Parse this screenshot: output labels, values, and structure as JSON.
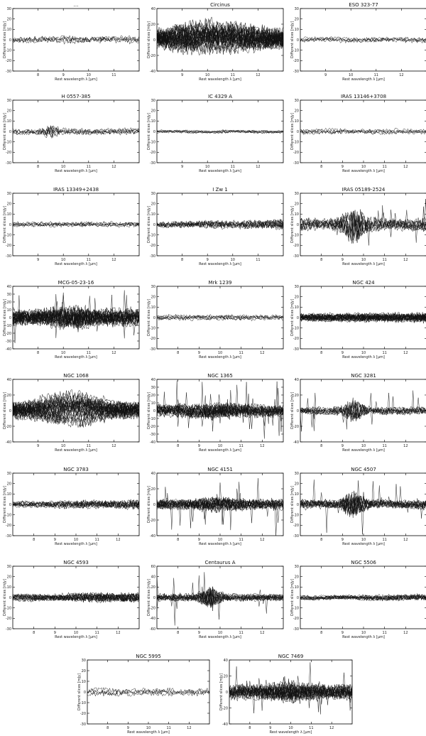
{
  "figure": {
    "chart_data": [
      {
        "type": "line",
        "title": "...",
        "xlabel": "Rest wavelength λ [μm]",
        "ylabel": "Different slices [mJy]",
        "xlim": [
          7,
          12.3
        ],
        "ylim": [
          -30,
          30
        ],
        "xticks": [
          "8",
          "9",
          "10",
          "11"
        ],
        "yticks": [
          "30",
          "20",
          "10",
          "0",
          "-10",
          "-20",
          "-30"
        ],
        "n_series": 5,
        "amplitude": 4,
        "noise_profile": "flat"
      },
      {
        "type": "line",
        "title": "Circinus",
        "xlabel": "Rest wavelength λ [μm]",
        "ylabel": "Different slices [mJy]",
        "xlim": [
          7.5,
          13
        ],
        "ylim": [
          -40,
          40
        ],
        "xticks": [
          "9",
          "10",
          "11",
          "12"
        ],
        "yticks": [
          "40",
          "20",
          "0",
          "-20",
          "-40"
        ],
        "n_series": 28,
        "amplitude": 16,
        "noise_profile": "silicate-wave"
      },
      {
        "type": "line",
        "title": "ESO 323-77",
        "xlabel": "Rest wavelength λ [μm]",
        "ylabel": "Different slices [mJy]",
        "xlim": [
          7.5,
          13
        ],
        "ylim": [
          -30,
          30
        ],
        "xticks": [
          "9",
          "10",
          "11",
          "12"
        ],
        "yticks": [
          "30",
          "20",
          "10",
          "0",
          "-10",
          "-20",
          "-30"
        ],
        "n_series": 5,
        "amplitude": 3,
        "noise_profile": "flat"
      },
      {
        "type": "line",
        "title": "H 0557-385",
        "xlabel": "Rest wavelength λ [μm]",
        "ylabel": "Different slices [mJy]",
        "xlim": [
          7.7,
          12.7
        ],
        "ylim": [
          -30,
          30
        ],
        "xticks": [
          "8",
          "10",
          "11",
          "12"
        ],
        "yticks": [
          "30",
          "20",
          "10",
          "0",
          "-10",
          "-20",
          "-30"
        ],
        "n_series": 6,
        "amplitude": 3.5,
        "noise_profile": "spike-left"
      },
      {
        "type": "line",
        "title": "IC 4329 A",
        "xlabel": "Rest wavelength λ [μm]",
        "ylabel": "Different slices [mJy]",
        "xlim": [
          8,
          12.5
        ],
        "ylim": [
          -30,
          30
        ],
        "xticks": [
          "9",
          "10",
          "11",
          "12"
        ],
        "yticks": [
          "30",
          "20",
          "10",
          "0",
          "-10",
          "-20",
          "-30"
        ],
        "n_series": 6,
        "amplitude": 2,
        "noise_profile": "flat"
      },
      {
        "type": "line",
        "title": "IRAS 13146+3708",
        "xlabel": "Rest wavelength λ [μm]",
        "ylabel": "Different slices [mJy]",
        "xlim": [
          7.3,
          12.4
        ],
        "ylim": [
          -30,
          30
        ],
        "xticks": [
          "8",
          "9",
          "10",
          "11",
          "12"
        ],
        "yticks": [
          "30",
          "20",
          "10",
          "0",
          "-10",
          "-20",
          "-30"
        ],
        "n_series": 5,
        "amplitude": 3,
        "noise_profile": "flat"
      },
      {
        "type": "line",
        "title": "IRAS 13349+2438",
        "xlabel": "Rest wavelength λ [μm]",
        "ylabel": "Different slices [mJy]",
        "xlim": [
          8,
          12.5
        ],
        "ylim": [
          -30,
          30
        ],
        "xticks": [
          "9",
          "10",
          "11",
          "12"
        ],
        "yticks": [
          "30",
          "20",
          "10",
          "0",
          "-10",
          "-20",
          "-30"
        ],
        "n_series": 6,
        "amplitude": 3,
        "noise_profile": "flat"
      },
      {
        "type": "line",
        "title": "I Zw 1",
        "xlabel": "Rest wavelength λ [μm]",
        "ylabel": "Different slices [mJy]",
        "xlim": [
          7.3,
          12
        ],
        "ylim": [
          -30,
          30
        ],
        "xticks": [
          "8",
          "9",
          "10",
          "11"
        ],
        "yticks": [
          "30",
          "20",
          "10",
          "0",
          "-10",
          "-20",
          "-30"
        ],
        "n_series": 10,
        "amplitude": 4.5,
        "noise_profile": "rising"
      },
      {
        "type": "line",
        "title": "IRAS 05189-2524",
        "xlabel": "Rest wavelength λ [μm]",
        "ylabel": "Different slices [mJy]",
        "xlim": [
          7.6,
          12.8
        ],
        "ylim": [
          -30,
          30
        ],
        "xticks": [
          "8",
          "9",
          "10",
          "11",
          "12"
        ],
        "yticks": [
          "30",
          "20",
          "10",
          "0",
          "-10",
          "-20",
          "-30"
        ],
        "n_series": 10,
        "amplitude": 7,
        "noise_profile": "spike-center"
      },
      {
        "type": "line",
        "title": "MCG-05-23-16",
        "xlabel": "Rest wavelength λ [μm]",
        "ylabel": "Different slices [mJy]",
        "xlim": [
          7.5,
          12.8
        ],
        "ylim": [
          -40,
          40
        ],
        "xticks": [
          "8",
          "10",
          "11",
          "12"
        ],
        "yticks": [
          "40",
          "30",
          "20",
          "10",
          "0",
          "-10",
          "-20",
          "-30",
          "-40"
        ],
        "n_series": 22,
        "amplitude": 12,
        "noise_profile": "noisy"
      },
      {
        "type": "line",
        "title": "Mrk 1239",
        "xlabel": "Rest wavelength λ [μm]",
        "ylabel": "Different slices [mJy]",
        "xlim": [
          7.6,
          12.5
        ],
        "ylim": [
          -30,
          30
        ],
        "xticks": [
          "8",
          "9",
          "10",
          "11",
          "12"
        ],
        "yticks": [
          "30",
          "20",
          "10",
          "0",
          "-10",
          "-20",
          "-30"
        ],
        "n_series": 6,
        "amplitude": 3,
        "noise_profile": "flat"
      },
      {
        "type": "line",
        "title": "NGC 424",
        "xlabel": "Rest wavelength λ [μm]",
        "ylabel": "Different slices [mJy]",
        "xlim": [
          7.6,
          12.8
        ],
        "ylim": [
          -30,
          30
        ],
        "xticks": [
          "8",
          "9",
          "10",
          "11",
          "12"
        ],
        "yticks": [
          "30",
          "20",
          "10",
          "0",
          "-10",
          "-20",
          "-30"
        ],
        "n_series": 24,
        "amplitude": 5,
        "noise_profile": "dense"
      },
      {
        "type": "line",
        "title": "NGC 1068",
        "xlabel": "Rest wavelength λ [μm]",
        "ylabel": "Different slices [mJy]",
        "xlim": [
          7.5,
          13
        ],
        "ylim": [
          -40,
          40
        ],
        "xticks": [
          "9",
          "10",
          "11",
          "12"
        ],
        "yticks": [
          "40",
          "20",
          "0",
          "-20",
          "-40"
        ],
        "n_series": 28,
        "amplitude": 12,
        "noise_profile": "silicate-wave"
      },
      {
        "type": "line",
        "title": "NGC 1365",
        "xlabel": "Rest wavelength λ [μm]",
        "ylabel": "Different slices [mJy]",
        "xlim": [
          7.6,
          12.6
        ],
        "ylim": [
          -40,
          40
        ],
        "xticks": [
          "8",
          "9",
          "10",
          "11",
          "12"
        ],
        "yticks": [
          "40",
          "30",
          "20",
          "10",
          "0",
          "-10",
          "-20",
          "-30",
          "-40"
        ],
        "n_series": 18,
        "amplitude": 9,
        "noise_profile": "noisy"
      },
      {
        "type": "line",
        "title": "NGC 3281",
        "xlabel": "Rest wavelength λ [μm]",
        "ylabel": "Different slices [mJy]",
        "xlim": [
          7.5,
          12.5
        ],
        "ylim": [
          -40,
          40
        ],
        "xticks": [
          "8",
          "9",
          "10",
          "11",
          "12"
        ],
        "yticks": [
          "40",
          "20",
          "0",
          "-20",
          "-40"
        ],
        "n_series": 10,
        "amplitude": 6,
        "noise_profile": "spike-center"
      },
      {
        "type": "line",
        "title": "NGC 3783",
        "xlabel": "Rest wavelength λ [μm]",
        "ylabel": "Different slices [mJy]",
        "xlim": [
          7.5,
          12.3
        ],
        "ylim": [
          -30,
          30
        ],
        "xticks": [
          "8",
          "9",
          "10",
          "11",
          "12"
        ],
        "yticks": [
          "30",
          "20",
          "10",
          "0",
          "-10",
          "-20",
          "-30"
        ],
        "n_series": 12,
        "amplitude": 4,
        "noise_profile": "rising"
      },
      {
        "type": "line",
        "title": "NGC 4151",
        "xlabel": "Rest wavelength λ [μm]",
        "ylabel": "Different slices [mJy]",
        "xlim": [
          7.8,
          12.9
        ],
        "ylim": [
          -40,
          40
        ],
        "xticks": [
          "8",
          "9",
          "10",
          "11",
          "12"
        ],
        "yticks": [
          "40",
          "20",
          "0",
          "-20",
          "-40"
        ],
        "n_series": 16,
        "amplitude": 8,
        "noise_profile": "noisy"
      },
      {
        "type": "line",
        "title": "NGC 4507",
        "xlabel": "Rest wavelength λ [μm]",
        "ylabel": "Different slices [mJy]",
        "xlim": [
          7.8,
          12.8
        ],
        "ylim": [
          -30,
          30
        ],
        "xticks": [
          "8",
          "9",
          "10",
          "11",
          "12"
        ],
        "yticks": [
          "30",
          "20",
          "10",
          "0",
          "-10",
          "-20",
          "-30"
        ],
        "n_series": 14,
        "amplitude": 5,
        "noise_profile": "spike-center"
      },
      {
        "type": "line",
        "title": "NGC 4593",
        "xlabel": "Rest wavelength λ [μm]",
        "ylabel": "Different slices [mJy]",
        "xlim": [
          7.8,
          12.4
        ],
        "ylim": [
          -30,
          30
        ],
        "xticks": [
          "8",
          "9",
          "10",
          "11",
          "12"
        ],
        "yticks": [
          "30",
          "20",
          "10",
          "0",
          "-10",
          "-20",
          "-30"
        ],
        "n_series": 16,
        "amplitude": 4.5,
        "noise_profile": "rising"
      },
      {
        "type": "line",
        "title": "Centaurus A",
        "xlabel": "Rest wavelength λ [μm]",
        "ylabel": "Different slices [mJy]",
        "xlim": [
          7.8,
          12.8
        ],
        "ylim": [
          -60,
          60
        ],
        "xticks": [
          "8",
          "9",
          "10",
          "11",
          "12"
        ],
        "yticks": [
          "60",
          "40",
          "20",
          "0",
          "-20",
          "-40",
          "-60"
        ],
        "n_series": 14,
        "amplitude": 8,
        "noise_profile": "spike-center"
      },
      {
        "type": "line",
        "title": "NGC 5506",
        "xlabel": "Rest wavelength λ [μm]",
        "ylabel": "Different slices [mJy]",
        "xlim": [
          7.5,
          12.8
        ],
        "ylim": [
          -30,
          30
        ],
        "xticks": [
          "8",
          "9",
          "10",
          "11",
          "12"
        ],
        "yticks": [
          "30",
          "20",
          "10",
          "0",
          "-10",
          "-20",
          "-30"
        ],
        "n_series": 12,
        "amplitude": 3,
        "noise_profile": "rising"
      },
      {
        "type": "line",
        "title": "NGC 5995",
        "xlabel": "Rest wavelength λ [μm]",
        "ylabel": "Different slices [mJy]",
        "xlim": [
          7.6,
          12.2
        ],
        "ylim": [
          -30,
          30
        ],
        "xticks": [
          "8",
          "9",
          "10",
          "11",
          "12"
        ],
        "yticks": [
          "30",
          "20",
          "10",
          "0",
          "-10",
          "-20",
          "-30"
        ],
        "n_series": 4,
        "amplitude": 4,
        "noise_profile": "flat"
      },
      {
        "type": "line",
        "title": "NGC 7469",
        "xlabel": "Rest wavelength λ [μm]",
        "ylabel": "Different slices [mJy]",
        "xlim": [
          7.6,
          13
        ],
        "ylim": [
          -40,
          40
        ],
        "xticks": [
          "8",
          "9",
          "10",
          "11",
          "12"
        ],
        "yticks": [
          "40",
          "20",
          "0",
          "-20",
          "-40"
        ],
        "n_series": 18,
        "amplitude": 11,
        "noise_profile": "noisy"
      }
    ]
  }
}
